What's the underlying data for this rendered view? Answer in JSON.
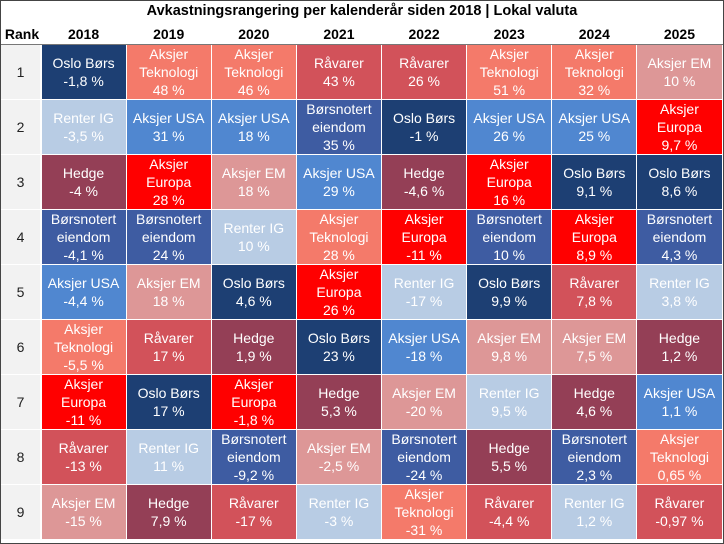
{
  "title": "Avkastningsrangering per kalenderår siden 2018 | Lokal valuta",
  "rank_header": "Rank",
  "colors": {
    "Oslo Børs": "#1d3f73",
    "Aksjer Teknologi": "#f47a6a",
    "Aksjer USA": "#5087d0",
    "Aksjer EM": "#dd9797",
    "Aksjer Europa": "#ff0000",
    "Renter IG": "#b8cce4",
    "Hedge": "#943f56",
    "Børsnotert eiendom": "#3e5ca2",
    "Råvarer": "#d2525a"
  },
  "chart_data": {
    "type": "table",
    "title": "Avkastningsrangering per kalenderår siden 2018 | Lokal valuta",
    "years": [
      "2018",
      "2019",
      "2020",
      "2021",
      "2022",
      "2023",
      "2024",
      "2025"
    ],
    "ranks": [
      "1",
      "2",
      "3",
      "4",
      "5",
      "6",
      "7",
      "8",
      "9"
    ],
    "cells": [
      [
        {
          "asset": "Oslo Børs",
          "ret": "-1,8 %"
        },
        {
          "asset": "Aksjer Teknologi",
          "ret": "48 %"
        },
        {
          "asset": "Aksjer Teknologi",
          "ret": "46 %"
        },
        {
          "asset": "Råvarer",
          "ret": "43 %"
        },
        {
          "asset": "Råvarer",
          "ret": "26 %"
        },
        {
          "asset": "Aksjer Teknologi",
          "ret": "51 %"
        },
        {
          "asset": "Aksjer Teknologi",
          "ret": "32 %"
        },
        {
          "asset": "Aksjer EM",
          "ret": "10 %"
        }
      ],
      [
        {
          "asset": "Renter IG",
          "ret": "-3,5 %"
        },
        {
          "asset": "Aksjer USA",
          "ret": "31 %"
        },
        {
          "asset": "Aksjer USA",
          "ret": "18 %"
        },
        {
          "asset": "Børsnotert eiendom",
          "ret": "35 %"
        },
        {
          "asset": "Oslo Børs",
          "ret": "-1 %"
        },
        {
          "asset": "Aksjer USA",
          "ret": "26 %"
        },
        {
          "asset": "Aksjer USA",
          "ret": "25 %"
        },
        {
          "asset": "Aksjer Europa",
          "ret": "9,7 %"
        }
      ],
      [
        {
          "asset": "Hedge",
          "ret": "-4 %"
        },
        {
          "asset": "Aksjer Europa",
          "ret": "28 %"
        },
        {
          "asset": "Aksjer EM",
          "ret": "18 %"
        },
        {
          "asset": "Aksjer USA",
          "ret": "29 %"
        },
        {
          "asset": "Hedge",
          "ret": "-4,6 %"
        },
        {
          "asset": "Aksjer Europa",
          "ret": "16 %"
        },
        {
          "asset": "Oslo Børs",
          "ret": "9,1 %"
        },
        {
          "asset": "Oslo Børs",
          "ret": "8,6 %"
        }
      ],
      [
        {
          "asset": "Børsnotert eiendom",
          "ret": "-4,1 %"
        },
        {
          "asset": "Børsnotert eiendom",
          "ret": "24 %"
        },
        {
          "asset": "Renter IG",
          "ret": "10 %"
        },
        {
          "asset": "Aksjer Teknologi",
          "ret": "28 %"
        },
        {
          "asset": "Aksjer Europa",
          "ret": "-11 %"
        },
        {
          "asset": "Børsnotert eiendom",
          "ret": "10 %"
        },
        {
          "asset": "Aksjer Europa",
          "ret": "8,9 %"
        },
        {
          "asset": "Børsnotert eiendom",
          "ret": "4,3 %"
        }
      ],
      [
        {
          "asset": "Aksjer USA",
          "ret": "-4,4 %"
        },
        {
          "asset": "Aksjer EM",
          "ret": "18 %"
        },
        {
          "asset": "Oslo Børs",
          "ret": "4,6 %"
        },
        {
          "asset": "Aksjer Europa",
          "ret": "26 %"
        },
        {
          "asset": "Renter IG",
          "ret": "-17 %"
        },
        {
          "asset": "Oslo Børs",
          "ret": "9,9 %"
        },
        {
          "asset": "Råvarer",
          "ret": "7,8 %"
        },
        {
          "asset": "Renter IG",
          "ret": "3,8 %"
        }
      ],
      [
        {
          "asset": "Aksjer Teknologi",
          "ret": "-5,5 %"
        },
        {
          "asset": "Råvarer",
          "ret": "17 %"
        },
        {
          "asset": "Hedge",
          "ret": "1,9 %"
        },
        {
          "asset": "Oslo Børs",
          "ret": "23 %"
        },
        {
          "asset": "Aksjer USA",
          "ret": "-18 %"
        },
        {
          "asset": "Aksjer EM",
          "ret": "9,8 %"
        },
        {
          "asset": "Aksjer EM",
          "ret": "7,5 %"
        },
        {
          "asset": "Hedge",
          "ret": "1,2 %"
        }
      ],
      [
        {
          "asset": "Aksjer Europa",
          "ret": "-11 %"
        },
        {
          "asset": "Oslo Børs",
          "ret": "17 %"
        },
        {
          "asset": "Aksjer Europa",
          "ret": "-1,8 %"
        },
        {
          "asset": "Hedge",
          "ret": "5,3 %"
        },
        {
          "asset": "Aksjer EM",
          "ret": "-20 %"
        },
        {
          "asset": "Renter IG",
          "ret": "9,5 %"
        },
        {
          "asset": "Hedge",
          "ret": "4,6 %"
        },
        {
          "asset": "Aksjer USA",
          "ret": "1,1 %"
        }
      ],
      [
        {
          "asset": "Råvarer",
          "ret": "-13 %"
        },
        {
          "asset": "Renter IG",
          "ret": "11 %"
        },
        {
          "asset": "Børsnotert eiendom",
          "ret": "-9,2 %"
        },
        {
          "asset": "Aksjer EM",
          "ret": "-2,5 %"
        },
        {
          "asset": "Børsnotert eiendom",
          "ret": "-24 %"
        },
        {
          "asset": "Hedge",
          "ret": "5,5 %"
        },
        {
          "asset": "Børsnotert eiendom",
          "ret": "2,3 %"
        },
        {
          "asset": "Aksjer Teknologi",
          "ret": "0,65 %"
        }
      ],
      [
        {
          "asset": "Aksjer EM",
          "ret": "-15 %"
        },
        {
          "asset": "Hedge",
          "ret": "7,9 %"
        },
        {
          "asset": "Råvarer",
          "ret": "-17 %"
        },
        {
          "asset": "Renter IG",
          "ret": "-3 %"
        },
        {
          "asset": "Aksjer Teknologi",
          "ret": "-31 %"
        },
        {
          "asset": "Råvarer",
          "ret": "-4,4 %"
        },
        {
          "asset": "Renter IG",
          "ret": "1,2 %"
        },
        {
          "asset": "Råvarer",
          "ret": "-0,97 %"
        }
      ]
    ]
  }
}
